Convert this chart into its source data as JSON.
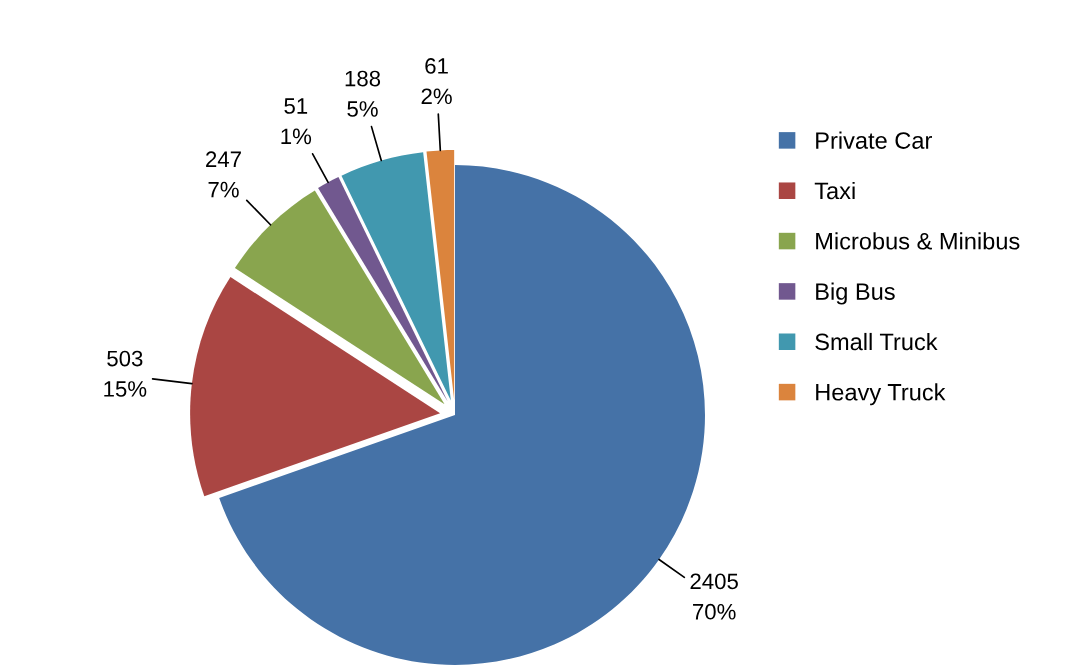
{
  "chart_data": {
    "type": "pie",
    "categories": [
      "Private Car",
      "Taxi",
      "Microbus & Minibus",
      "Big Bus",
      "Small Truck",
      "Heavy Truck"
    ],
    "values": [
      2405,
      503,
      247,
      51,
      188,
      61
    ],
    "value_labels": [
      "2405\n70%",
      "503\n15%",
      "247\n7%",
      "51\n1%",
      "188\n5%",
      "61\n2%"
    ],
    "colors": [
      "#4572a7",
      "#aa4643",
      "#89a54e",
      "#71588f",
      "#4198af",
      "#db843d"
    ],
    "legend": "right"
  }
}
